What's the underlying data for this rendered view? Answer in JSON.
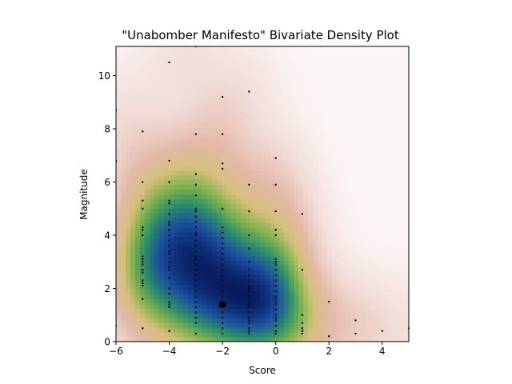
{
  "chart_data": {
    "type": "scatter",
    "title": "\"Unabomber Manifesto\" Bivariate Density Plot",
    "xlabel": "Score",
    "ylabel": "Magnitude",
    "xlim": [
      -6,
      5
    ],
    "ylim": [
      0,
      11.1
    ],
    "xticks": [
      -6,
      -4,
      -2,
      0,
      2,
      4
    ],
    "yticks": [
      0,
      2,
      4,
      6,
      8,
      10
    ],
    "xtick_labels": [
      "−6",
      "−4",
      "−2",
      "0",
      "2",
      "4"
    ],
    "ytick_labels": [
      "0",
      "2",
      "4",
      "6",
      "8",
      "10"
    ],
    "grid": false,
    "density_colormap": [
      "#fbf6f6",
      "#f1dcd7",
      "#e3b9a9",
      "#d6c07a",
      "#7fb24e",
      "#2d8f6b",
      "#1a4fa0",
      "#071b5e"
    ],
    "density_peak": [
      -2,
      1.4
    ],
    "points": [
      [
        -6,
        8.7
      ],
      [
        -6,
        6.8
      ],
      [
        -6,
        0.6
      ],
      [
        -5,
        7.9
      ],
      [
        -5,
        6.0
      ],
      [
        -5,
        5.3
      ],
      [
        -5,
        5.0
      ],
      [
        -5,
        4.3
      ],
      [
        -5,
        4.2
      ],
      [
        -5,
        4.0
      ],
      [
        -5,
        3.2
      ],
      [
        -5,
        3.1
      ],
      [
        -5,
        3.0
      ],
      [
        -5,
        2.9
      ],
      [
        -5,
        2.7
      ],
      [
        -5,
        2.6
      ],
      [
        -5,
        2.3
      ],
      [
        -5,
        2.2
      ],
      [
        -5,
        2.1
      ],
      [
        -5,
        1.6
      ],
      [
        -5,
        0.5
      ],
      [
        -4,
        10.5
      ],
      [
        -4,
        6.8
      ],
      [
        -4,
        6.0
      ],
      [
        -4,
        5.3
      ],
      [
        -4,
        5.2
      ],
      [
        -4,
        4.8
      ],
      [
        -4,
        4.5
      ],
      [
        -4,
        4.4
      ],
      [
        -4,
        4.2
      ],
      [
        -4,
        4.0
      ],
      [
        -4,
        3.8
      ],
      [
        -4,
        3.6
      ],
      [
        -4,
        3.4
      ],
      [
        -4,
        3.3
      ],
      [
        -4,
        3.0
      ],
      [
        -4,
        2.8
      ],
      [
        -4,
        2.7
      ],
      [
        -4,
        2.4
      ],
      [
        -4,
        2.0
      ],
      [
        -4,
        1.8
      ],
      [
        -4,
        1.5
      ],
      [
        -4,
        1.4
      ],
      [
        -4,
        1.3
      ],
      [
        -4,
        0.4
      ],
      [
        -3,
        11.1
      ],
      [
        -3,
        7.8
      ],
      [
        -3,
        6.3
      ],
      [
        -3,
        5.9
      ],
      [
        -3,
        5.5
      ],
      [
        -3,
        5.0
      ],
      [
        -3,
        4.9
      ],
      [
        -3,
        4.7
      ],
      [
        -3,
        4.5
      ],
      [
        -3,
        4.3
      ],
      [
        -3,
        4.1
      ],
      [
        -3,
        4.0
      ],
      [
        -3,
        3.8
      ],
      [
        -3,
        3.6
      ],
      [
        -3,
        3.4
      ],
      [
        -3,
        3.2
      ],
      [
        -3,
        3.1
      ],
      [
        -3,
        2.9
      ],
      [
        -3,
        2.7
      ],
      [
        -3,
        2.5
      ],
      [
        -3,
        2.3
      ],
      [
        -3,
        2.1
      ],
      [
        -3,
        1.9
      ],
      [
        -3,
        1.7
      ],
      [
        -3,
        1.5
      ],
      [
        -3,
        1.3
      ],
      [
        -3,
        1.1
      ],
      [
        -3,
        0.9
      ],
      [
        -3,
        0.7
      ],
      [
        -3,
        0.3
      ],
      [
        -2,
        9.2
      ],
      [
        -2,
        7.8
      ],
      [
        -2,
        6.7
      ],
      [
        -2,
        6.5
      ],
      [
        -2,
        5.0
      ],
      [
        -2,
        4.3
      ],
      [
        -2,
        4.1
      ],
      [
        -2,
        3.9
      ],
      [
        -2,
        3.7
      ],
      [
        -2,
        3.5
      ],
      [
        -2,
        3.3
      ],
      [
        -2,
        3.1
      ],
      [
        -2,
        2.9
      ],
      [
        -2,
        2.7
      ],
      [
        -2,
        2.5
      ],
      [
        -2,
        2.3
      ],
      [
        -2,
        2.1
      ],
      [
        -2,
        1.9
      ],
      [
        -2,
        1.7
      ],
      [
        -2,
        1.5
      ],
      [
        -2,
        1.4
      ],
      [
        -2,
        1.3
      ],
      [
        -2,
        1.1
      ],
      [
        -2,
        0.9
      ],
      [
        -2,
        0.7
      ],
      [
        -2,
        0.5
      ],
      [
        -2,
        0.3
      ],
      [
        -1,
        9.4
      ],
      [
        -1,
        5.9
      ],
      [
        -1,
        4.9
      ],
      [
        -1,
        4.0
      ],
      [
        -1,
        3.5
      ],
      [
        -1,
        3.0
      ],
      [
        -1,
        2.7
      ],
      [
        -1,
        2.5
      ],
      [
        -1,
        2.3
      ],
      [
        -1,
        2.1
      ],
      [
        -1,
        2.0
      ],
      [
        -1,
        1.9
      ],
      [
        -1,
        1.7
      ],
      [
        -1,
        1.5
      ],
      [
        -1,
        1.4
      ],
      [
        -1,
        1.3
      ],
      [
        -1,
        1.1
      ],
      [
        -1,
        0.9
      ],
      [
        -1,
        0.8
      ],
      [
        -1,
        0.7
      ],
      [
        -1,
        0.5
      ],
      [
        -1,
        0.4
      ],
      [
        -1,
        0.3
      ],
      [
        0,
        6.9
      ],
      [
        0,
        5.9
      ],
      [
        0,
        4.9
      ],
      [
        0,
        4.2
      ],
      [
        0,
        4.0
      ],
      [
        0,
        3.1
      ],
      [
        0,
        3.0
      ],
      [
        0,
        2.9
      ],
      [
        0,
        2.7
      ],
      [
        0,
        2.5
      ],
      [
        0,
        2.3
      ],
      [
        0,
        2.1
      ],
      [
        0,
        1.9
      ],
      [
        0,
        1.7
      ],
      [
        0,
        1.6
      ],
      [
        0,
        1.5
      ],
      [
        0,
        1.4
      ],
      [
        0,
        1.2
      ],
      [
        0,
        1.0
      ],
      [
        0,
        0.9
      ],
      [
        0,
        0.8
      ],
      [
        0,
        0.6
      ],
      [
        0,
        0.4
      ],
      [
        0,
        0.3
      ],
      [
        1,
        4.8
      ],
      [
        1,
        2.7
      ],
      [
        1,
        1.0
      ],
      [
        1,
        0.7
      ],
      [
        1,
        0.5
      ],
      [
        1,
        0.4
      ],
      [
        1,
        0.3
      ],
      [
        2,
        1.5
      ],
      [
        2,
        0.2
      ],
      [
        3,
        0.8
      ],
      [
        3,
        0.3
      ],
      [
        4,
        0.4
      ],
      [
        5,
        0.5
      ]
    ]
  }
}
